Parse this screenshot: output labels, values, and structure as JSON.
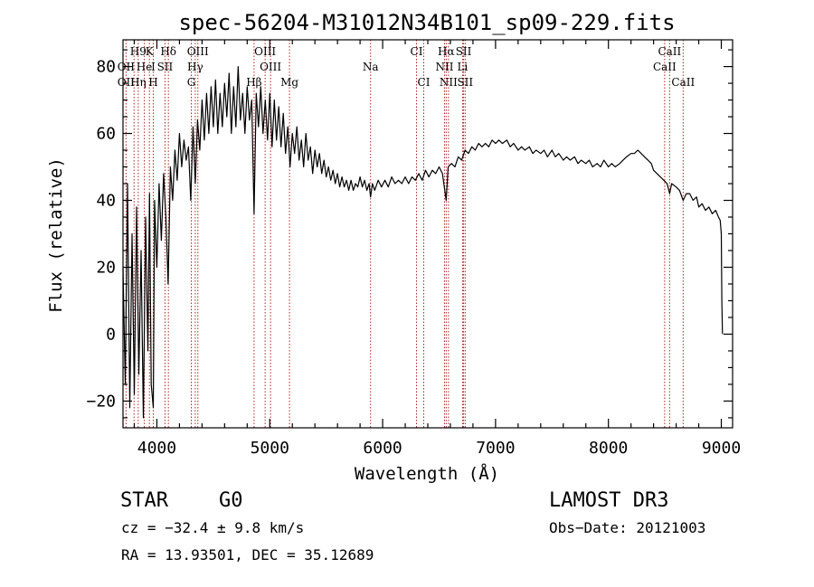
{
  "chart_data": {
    "type": "line",
    "title": "spec-56204-M31012N34B101_sp09-229.fits",
    "xlabel": "Wavelength (Å)",
    "ylabel": "Flux (relative)",
    "xlim": [
      3700,
      9100
    ],
    "ylim": [
      -28,
      88
    ],
    "xticks": [
      4000,
      5000,
      6000,
      7000,
      8000,
      9000
    ],
    "yticks": [
      -20,
      0,
      20,
      40,
      60,
      80
    ],
    "grid": false,
    "series": [
      {
        "name": "flux",
        "points": [
          [
            3700,
            20
          ],
          [
            3720,
            -15
          ],
          [
            3740,
            45
          ],
          [
            3760,
            -22
          ],
          [
            3780,
            30
          ],
          [
            3800,
            -18
          ],
          [
            3820,
            38
          ],
          [
            3840,
            -12
          ],
          [
            3860,
            25
          ],
          [
            3880,
            -25
          ],
          [
            3900,
            35
          ],
          [
            3920,
            -5
          ],
          [
            3935,
            42
          ],
          [
            3950,
            -15
          ],
          [
            3968,
            -22
          ],
          [
            3980,
            40
          ],
          [
            4000,
            20
          ],
          [
            4020,
            45
          ],
          [
            4040,
            28
          ],
          [
            4060,
            48
          ],
          [
            4080,
            35
          ],
          [
            4100,
            15
          ],
          [
            4120,
            50
          ],
          [
            4140,
            40
          ],
          [
            4160,
            55
          ],
          [
            4180,
            46
          ],
          [
            4200,
            60
          ],
          [
            4220,
            50
          ],
          [
            4240,
            58
          ],
          [
            4260,
            52
          ],
          [
            4280,
            56
          ],
          [
            4300,
            40
          ],
          [
            4320,
            62
          ],
          [
            4340,
            45
          ],
          [
            4360,
            64
          ],
          [
            4380,
            55
          ],
          [
            4400,
            70
          ],
          [
            4420,
            58
          ],
          [
            4440,
            72
          ],
          [
            4460,
            60
          ],
          [
            4480,
            74
          ],
          [
            4500,
            62
          ],
          [
            4520,
            76
          ],
          [
            4540,
            60
          ],
          [
            4560,
            72
          ],
          [
            4580,
            62
          ],
          [
            4600,
            75
          ],
          [
            4620,
            65
          ],
          [
            4640,
            78
          ],
          [
            4660,
            60
          ],
          [
            4680,
            74
          ],
          [
            4700,
            62
          ],
          [
            4720,
            80
          ],
          [
            4740,
            64
          ],
          [
            4760,
            72
          ],
          [
            4780,
            60
          ],
          [
            4800,
            74
          ],
          [
            4820,
            64
          ],
          [
            4840,
            70
          ],
          [
            4861,
            36
          ],
          [
            4880,
            72
          ],
          [
            4900,
            62
          ],
          [
            4920,
            74
          ],
          [
            4940,
            60
          ],
          [
            4960,
            70
          ],
          [
            4980,
            58
          ],
          [
            5000,
            72
          ],
          [
            5020,
            56
          ],
          [
            5040,
            70
          ],
          [
            5060,
            58
          ],
          [
            5080,
            68
          ],
          [
            5100,
            56
          ],
          [
            5120,
            66
          ],
          [
            5140,
            54
          ],
          [
            5160,
            62
          ],
          [
            5180,
            50
          ],
          [
            5200,
            60
          ],
          [
            5220,
            54
          ],
          [
            5240,
            62
          ],
          [
            5260,
            52
          ],
          [
            5280,
            58
          ],
          [
            5300,
            50
          ],
          [
            5320,
            60
          ],
          [
            5340,
            52
          ],
          [
            5360,
            56
          ],
          [
            5380,
            48
          ],
          [
            5400,
            55
          ],
          [
            5420,
            50
          ],
          [
            5440,
            54
          ],
          [
            5460,
            48
          ],
          [
            5480,
            52
          ],
          [
            5500,
            47
          ],
          [
            5520,
            50
          ],
          [
            5540,
            46
          ],
          [
            5560,
            49
          ],
          [
            5580,
            45
          ],
          [
            5600,
            48
          ],
          [
            5620,
            44
          ],
          [
            5640,
            47
          ],
          [
            5660,
            44
          ],
          [
            5680,
            46
          ],
          [
            5700,
            43
          ],
          [
            5720,
            46
          ],
          [
            5740,
            43
          ],
          [
            5760,
            45
          ],
          [
            5780,
            44
          ],
          [
            5800,
            47
          ],
          [
            5820,
            44
          ],
          [
            5840,
            46
          ],
          [
            5860,
            43
          ],
          [
            5880,
            45
          ],
          [
            5893,
            41
          ],
          [
            5910,
            45
          ],
          [
            5930,
            43
          ],
          [
            5960,
            46
          ],
          [
            5990,
            44
          ],
          [
            6020,
            46
          ],
          [
            6050,
            44
          ],
          [
            6080,
            47
          ],
          [
            6110,
            45
          ],
          [
            6140,
            46
          ],
          [
            6170,
            45
          ],
          [
            6200,
            47
          ],
          [
            6230,
            45
          ],
          [
            6260,
            47
          ],
          [
            6290,
            46
          ],
          [
            6320,
            48
          ],
          [
            6350,
            46
          ],
          [
            6380,
            49
          ],
          [
            6410,
            47
          ],
          [
            6440,
            49
          ],
          [
            6470,
            48
          ],
          [
            6500,
            50
          ],
          [
            6530,
            48
          ],
          [
            6563,
            40
          ],
          [
            6580,
            50
          ],
          [
            6610,
            51
          ],
          [
            6640,
            50
          ],
          [
            6670,
            53
          ],
          [
            6700,
            52
          ],
          [
            6730,
            55
          ],
          [
            6760,
            54
          ],
          [
            6790,
            56
          ],
          [
            6820,
            55
          ],
          [
            6850,
            57
          ],
          [
            6880,
            56
          ],
          [
            6910,
            57
          ],
          [
            6940,
            56
          ],
          [
            6970,
            58
          ],
          [
            7000,
            57
          ],
          [
            7030,
            58
          ],
          [
            7060,
            57
          ],
          [
            7100,
            58
          ],
          [
            7130,
            56
          ],
          [
            7160,
            57
          ],
          [
            7200,
            55
          ],
          [
            7230,
            56
          ],
          [
            7260,
            55
          ],
          [
            7300,
            56
          ],
          [
            7330,
            54
          ],
          [
            7360,
            55
          ],
          [
            7400,
            54
          ],
          [
            7430,
            55
          ],
          [
            7460,
            53
          ],
          [
            7500,
            55
          ],
          [
            7530,
            53
          ],
          [
            7560,
            54
          ],
          [
            7600,
            52
          ],
          [
            7630,
            53
          ],
          [
            7660,
            52
          ],
          [
            7700,
            53
          ],
          [
            7730,
            51
          ],
          [
            7760,
            52
          ],
          [
            7800,
            51
          ],
          [
            7830,
            52
          ],
          [
            7860,
            50
          ],
          [
            7900,
            51
          ],
          [
            7930,
            50
          ],
          [
            7960,
            52
          ],
          [
            8000,
            50
          ],
          [
            8030,
            51
          ],
          [
            8060,
            50
          ],
          [
            8100,
            51
          ],
          [
            8130,
            52
          ],
          [
            8160,
            53
          ],
          [
            8200,
            54
          ],
          [
            8230,
            54
          ],
          [
            8260,
            55
          ],
          [
            8290,
            54
          ],
          [
            8320,
            53
          ],
          [
            8350,
            52
          ],
          [
            8380,
            51
          ],
          [
            8400,
            49
          ],
          [
            8430,
            48
          ],
          [
            8460,
            47
          ],
          [
            8490,
            46
          ],
          [
            8520,
            45
          ],
          [
            8542,
            42
          ],
          [
            8560,
            45
          ],
          [
            8600,
            44
          ],
          [
            8630,
            43
          ],
          [
            8662,
            40
          ],
          [
            8690,
            42
          ],
          [
            8720,
            42
          ],
          [
            8750,
            40
          ],
          [
            8780,
            41
          ],
          [
            8800,
            38
          ],
          [
            8830,
            39
          ],
          [
            8860,
            37
          ],
          [
            8890,
            38
          ],
          [
            8920,
            36
          ],
          [
            8950,
            37
          ],
          [
            8975,
            35
          ],
          [
            8990,
            34
          ],
          [
            9000,
            30
          ],
          [
            9005,
            10
          ],
          [
            9010,
            0
          ]
        ]
      }
    ],
    "spectral_lines": [
      {
        "label": "H9",
        "wavelength": 3835,
        "row": 1
      },
      {
        "label": "K",
        "wavelength": 3934,
        "row": 1
      },
      {
        "label": "Hδ",
        "wavelength": 4102,
        "row": 1
      },
      {
        "label": "OIII",
        "wavelength": 4363,
        "row": 1
      },
      {
        "label": "OIII",
        "wavelength": 4959,
        "row": 1
      },
      {
        "label": "CI",
        "wavelength": 6300,
        "row": 1
      },
      {
        "label": "Hα",
        "wavelength": 6563,
        "row": 1
      },
      {
        "label": "SII",
        "wavelength": 6717,
        "row": 1
      },
      {
        "label": "CaII",
        "wavelength": 8542,
        "row": 1
      },
      {
        "label": "OII",
        "wavelength": 3727,
        "row": 2
      },
      {
        "label": "He",
        "wavelength": 3889,
        "row": 2
      },
      {
        "label": "I",
        "wavelength": 3968,
        "row": 2
      },
      {
        "label": "SII",
        "wavelength": 4072,
        "row": 2
      },
      {
        "label": "Hγ",
        "wavelength": 4340,
        "row": 2
      },
      {
        "label": "OIII",
        "wavelength": 5007,
        "row": 2
      },
      {
        "label": "Na",
        "wavelength": 5893,
        "row": 2
      },
      {
        "label": "NII",
        "wavelength": 6548,
        "row": 2
      },
      {
        "label": "Li",
        "wavelength": 6708,
        "row": 2
      },
      {
        "label": "CaII",
        "wavelength": 8498,
        "row": 2
      },
      {
        "label": "OII",
        "wavelength": 3727,
        "row": 3
      },
      {
        "label": "Hη",
        "wavelength": 3835,
        "row": 3
      },
      {
        "label": "H",
        "wavelength": 3968,
        "row": 3
      },
      {
        "label": "G",
        "wavelength": 4305,
        "row": 3
      },
      {
        "label": "Hβ",
        "wavelength": 4861,
        "row": 3
      },
      {
        "label": "Mg",
        "wavelength": 5175,
        "row": 3
      },
      {
        "label": "CI",
        "wavelength": 6364,
        "row": 3
      },
      {
        "label": "NII",
        "wavelength": 6583,
        "row": 3
      },
      {
        "label": "SII",
        "wavelength": 6731,
        "row": 3
      },
      {
        "label": "CaII",
        "wavelength": 8662,
        "row": 3
      }
    ],
    "line_marker_wavelengths": [
      3727,
      3798,
      3835,
      3889,
      3934,
      3968,
      4072,
      4102,
      4305,
      4340,
      4363,
      4861,
      4959,
      5007,
      5175,
      5893,
      6300,
      6364,
      6548,
      6563,
      6583,
      6708,
      6717,
      6731,
      8498,
      8542,
      8662
    ],
    "line_color": "#b22222"
  },
  "info": {
    "class_label": "STAR",
    "subclass": "G0",
    "survey": "LAMOST DR3",
    "cz": "cz = −32.4 ± 9.8 km/s",
    "obs_date": "Obs−Date: 20121003",
    "coords": "RA =  13.93501, DEC =  35.12689"
  }
}
